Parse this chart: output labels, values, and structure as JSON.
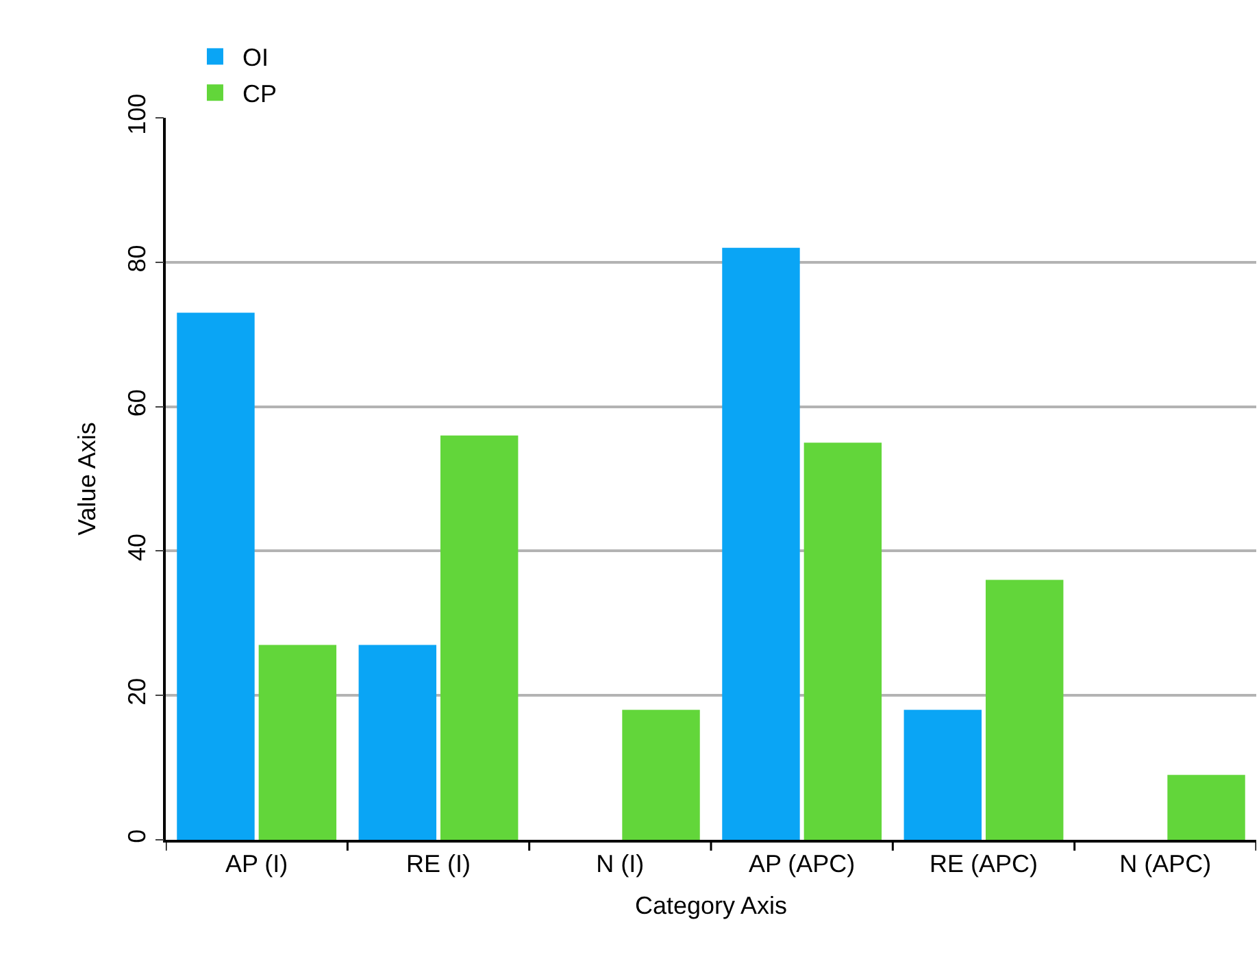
{
  "chart_data": {
    "type": "bar",
    "xlabel": "Category Axis",
    "ylabel": "Value Axis",
    "categories": [
      "AP (I)",
      "RE (I)",
      "N (I)",
      "AP (APC)",
      "RE (APC)",
      "N (APC)"
    ],
    "series": [
      {
        "name": "OI",
        "color": "#0aa5f5",
        "values": [
          73,
          27,
          0,
          82,
          18,
          0
        ]
      },
      {
        "name": "CP",
        "color": "#62d63a",
        "values": [
          27,
          56,
          18,
          55,
          36,
          9
        ]
      }
    ],
    "ylim": [
      0,
      100
    ],
    "yticks": [
      0,
      20,
      40,
      60,
      80,
      100
    ],
    "grid": "y",
    "legend": "top"
  }
}
